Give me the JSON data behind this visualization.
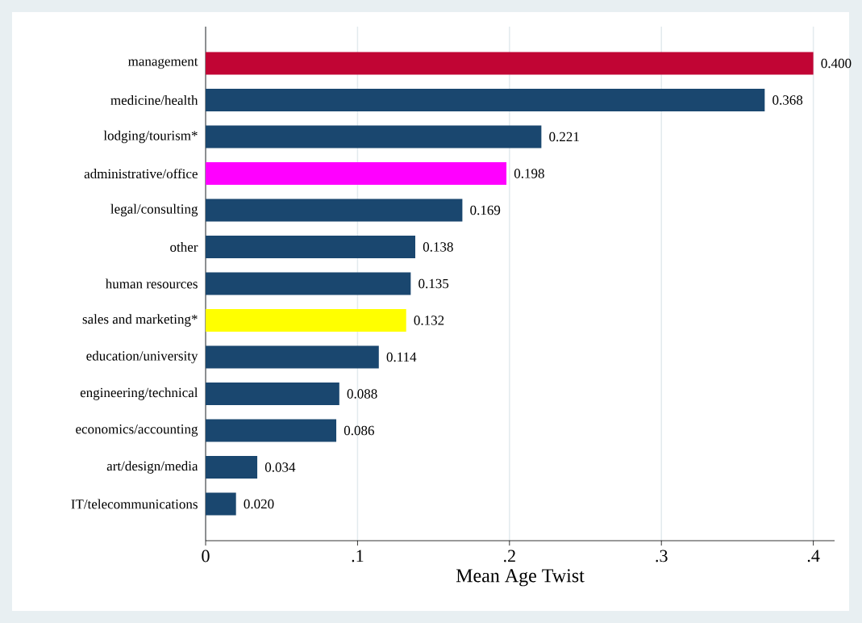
{
  "chart_data": {
    "type": "bar",
    "orientation": "horizontal",
    "xlabel": "Mean Age Twist",
    "categories": [
      "management",
      "medicine/health",
      "lodging/tourism*",
      "administrative/office",
      "legal/consulting",
      "other",
      "human resources",
      "sales and marketing*",
      "education/university",
      "engineering/technical",
      "economics/accounting",
      "art/design/media",
      "IT/telecommunications"
    ],
    "values": [
      0.4,
      0.368,
      0.221,
      0.198,
      0.169,
      0.138,
      0.135,
      0.132,
      0.114,
      0.088,
      0.086,
      0.034,
      0.02
    ],
    "value_labels": [
      "0.400",
      "0.368",
      "0.221",
      "0.198",
      "0.169",
      "0.138",
      "0.135",
      "0.132",
      "0.114",
      "0.088",
      "0.086",
      "0.034",
      "0.020"
    ],
    "colors": [
      "#c10534",
      "#1a476f",
      "#1a476f",
      "#ff00ff",
      "#1a476f",
      "#1a476f",
      "#1a476f",
      "#ffff00",
      "#1a476f",
      "#1a476f",
      "#1a476f",
      "#1a476f",
      "#1a476f"
    ],
    "xlim": [
      0,
      0.414
    ],
    "xticks": [
      0,
      {
        "value": 0.1,
        "label": ".1"
      },
      {
        "value": 0.2,
        "label": ".2"
      },
      {
        "value": 0.3,
        "label": ".3"
      },
      {
        "value": 0.4,
        "label": ".4"
      }
    ],
    "grid": "x"
  }
}
